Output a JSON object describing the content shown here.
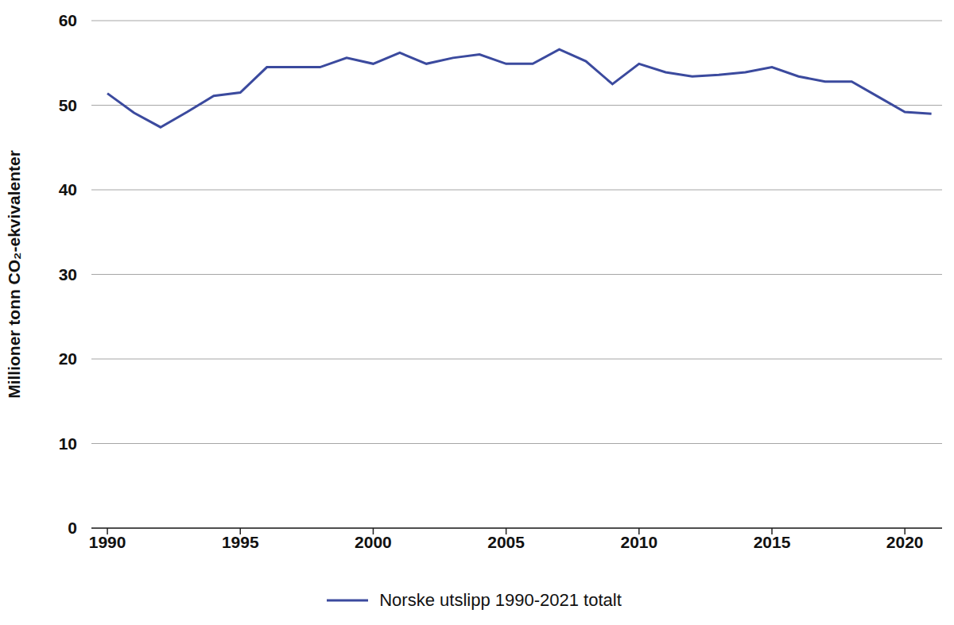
{
  "chart_data": {
    "type": "line",
    "y_label": "Millioner tonn CO₂-ekvivalenter",
    "x": [
      1990,
      1991,
      1992,
      1993,
      1994,
      1995,
      1996,
      1997,
      1998,
      1999,
      2000,
      2001,
      2002,
      2003,
      2004,
      2005,
      2006,
      2007,
      2008,
      2009,
      2010,
      2011,
      2012,
      2013,
      2014,
      2015,
      2016,
      2017,
      2018,
      2019,
      2020,
      2021
    ],
    "series": [
      {
        "name": "Norske utslipp 1990-2021 totalt",
        "color": "#3b4a9e",
        "values": [
          51.4,
          49.1,
          47.4,
          49.2,
          51.1,
          51.5,
          54.5,
          54.5,
          54.5,
          55.6,
          54.9,
          56.2,
          54.9,
          55.6,
          56.0,
          54.9,
          54.9,
          56.6,
          55.2,
          52.5,
          54.9,
          53.9,
          53.4,
          53.6,
          53.9,
          54.5,
          53.4,
          52.8,
          52.8,
          51.0,
          49.2,
          49.0
        ]
      }
    ],
    "xlim": [
      1989.4,
      2021.4
    ],
    "xticks": [
      1990,
      1995,
      2000,
      2005,
      2010,
      2015,
      2020
    ],
    "ylim": [
      0,
      60
    ],
    "yticks": [
      0,
      10,
      20,
      30,
      40,
      50,
      60
    ],
    "grid": true,
    "legend": "bottom"
  }
}
